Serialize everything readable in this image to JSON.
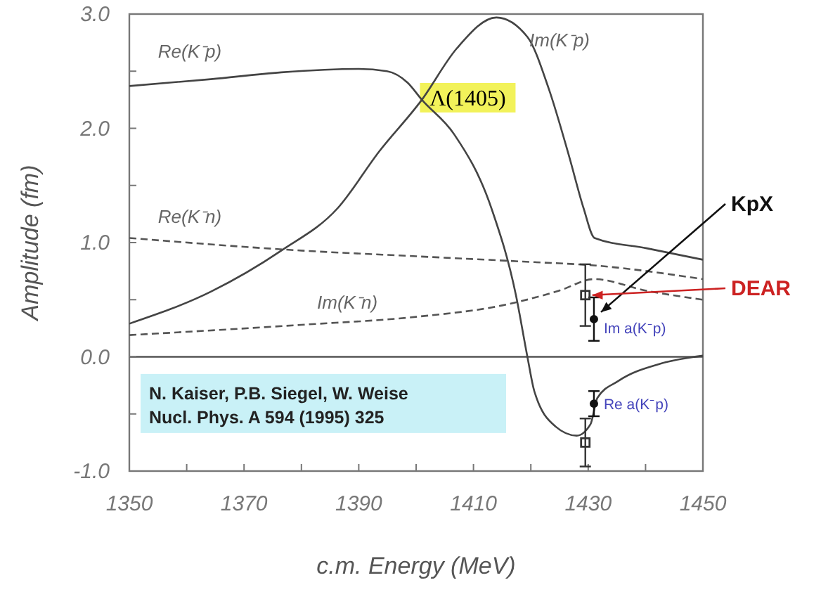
{
  "chart_data": {
    "type": "line",
    "xlabel": "c.m. Energy (MeV)",
    "ylabel": "Amplitude (fm)",
    "xlim": [
      1350,
      1450
    ],
    "ylim": [
      -1,
      3
    ],
    "xticks": [
      1350,
      {
        "value": 1360,
        "label": null
      },
      1370,
      {
        "value": 1380,
        "label": null
      },
      1390,
      {
        "value": 1400,
        "label": null
      },
      1410,
      {
        "value": 1420,
        "label": null
      },
      1430,
      {
        "value": 1440,
        "label": null
      },
      1450
    ],
    "yticks": [
      {
        "value": -1,
        "label": "-1.0"
      },
      {
        "value": -0.5,
        "label": null
      },
      {
        "value": 0,
        "label": "0.0"
      },
      {
        "value": 0.5,
        "label": null
      },
      {
        "value": 1,
        "label": "1.0"
      },
      {
        "value": 1.5,
        "label": null
      },
      {
        "value": 2,
        "label": "2.0"
      },
      {
        "value": 2.5,
        "label": null
      },
      {
        "value": 3,
        "label": "3.0"
      }
    ],
    "ref_lines": [
      {
        "axis": "y",
        "value": 0,
        "color": "#555555"
      }
    ],
    "series": [
      {
        "name": "Re(K⁻p)",
        "color": "#444444",
        "line_style": "solid",
        "x": [
          1350,
          1364.2,
          1376.5,
          1390,
          1394.9,
          1398.5,
          1401,
          1406.6,
          1413.2,
          1417.4,
          1419.4,
          1420.6,
          1424.3,
          1428,
          1430.4,
          1431.6,
          1435.3,
          1442.6,
          1450
        ],
        "values": [
          2.37,
          2.43,
          2.49,
          2.52,
          2.5,
          2.4,
          2.25,
          1.95,
          1.29,
          0.54,
          0,
          -0.3,
          -0.61,
          -0.69,
          -0.59,
          -0.36,
          -0.21,
          -0.06,
          0.01
        ]
      },
      {
        "name": "Im(K⁻p)",
        "color": "#444444",
        "line_style": "solid",
        "x": [
          1350,
          1364.2,
          1376.5,
          1386.3,
          1393.6,
          1401,
          1407.1,
          1414,
          1419.4,
          1423.1,
          1426.7,
          1429.2,
          1431.1,
          1440.2,
          1450
        ],
        "values": [
          0.29,
          0.57,
          0.93,
          1.3,
          1.8,
          2.25,
          2.7,
          2.97,
          2.8,
          2.35,
          1.75,
          1.3,
          1.04,
          0.95,
          0.85
        ]
      },
      {
        "name": "Re(K⁻n)",
        "color": "#555555",
        "line_style": "dashed",
        "x": [
          1350,
          1380,
          1400,
          1420,
          1431,
          1450
        ],
        "values": [
          1.04,
          0.93,
          0.88,
          0.83,
          0.8,
          0.68
        ]
      },
      {
        "name": "Im(K⁻n)",
        "color": "#555555",
        "line_style": "dashed",
        "x": [
          1350,
          1380,
          1400,
          1415,
          1425,
          1431,
          1440,
          1450
        ],
        "values": [
          0.19,
          0.28,
          0.35,
          0.45,
          0.58,
          0.68,
          0.58,
          0.5
        ]
      },
      {
        "name": "KpX",
        "type": "scatter",
        "marker": "circle",
        "color": "#111111",
        "x": [
          1431,
          1431
        ],
        "values": [
          0.33,
          -0.41
        ],
        "errors": [
          0.19,
          0.11
        ]
      },
      {
        "name": "DEAR",
        "type": "scatter",
        "marker": "square",
        "color": "#333333",
        "x": [
          1429.5,
          1429.5
        ],
        "values": [
          0.54,
          -0.75
        ],
        "errors": [
          0.27,
          0.21
        ]
      }
    ],
    "annotations": [
      "Λ(1405)",
      "N. Kaiser, P.B. Siegel, W. Weise\nNucl. Phys. A 594 (1995) 325",
      {
        "text": "Im a(K⁻p)",
        "x": 1430.5,
        "y": 0.33
      },
      {
        "text": "Re a(K⁻p)",
        "x": 1430.5,
        "y": -0.41
      }
    ]
  }
}
